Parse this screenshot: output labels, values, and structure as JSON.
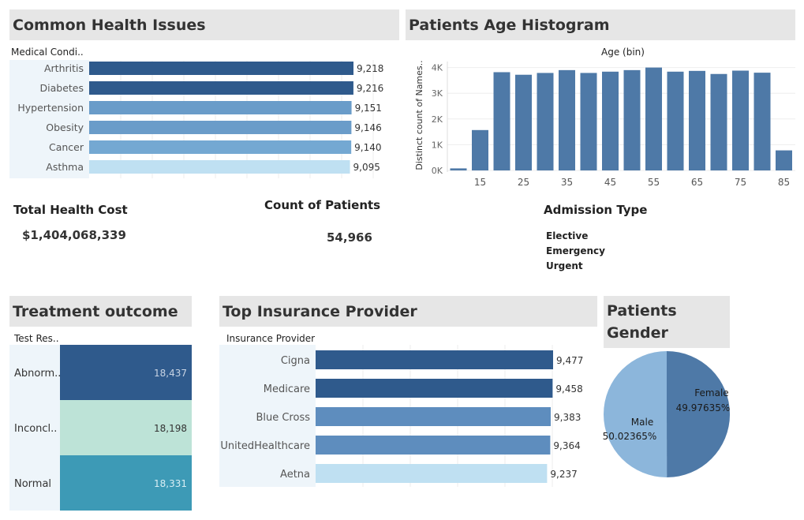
{
  "health": {
    "title": "Common Health Issues",
    "column_header": "Medical Condi..",
    "colors": [
      "#2f5a8c",
      "#2f5a8c",
      "#6a9cc9",
      "#6a9cc9",
      "#74a8d2",
      "#bfe0f2"
    ]
  },
  "age": {
    "title": "Patients Age Histogram",
    "top_label": "Age (bin)",
    "y_label": "Distinct count of Names..",
    "color": "#4e79a7"
  },
  "kpis": {
    "cost_label": "Total Health Cost",
    "cost_value": "$1,404,068,339",
    "patients_label": "Count of Patients",
    "patients_value": "54,966"
  },
  "admission": {
    "title": "Admission Type",
    "items": [
      "Elective",
      "Emergency",
      "Urgent"
    ]
  },
  "treatment": {
    "title": "Treatment outcome",
    "column_header": "Test Res..",
    "colors": [
      "#2f5a8c",
      "#bde3d7",
      "#3d9ab6"
    ],
    "value_colors": [
      "#c7d3e3",
      "#333333",
      "#d9eef4"
    ]
  },
  "insurance": {
    "title": "Top Insurance Provider",
    "column_header": "Insurance Provider",
    "colors": [
      "#2f5a8c",
      "#2f5a8c",
      "#5e8dbe",
      "#5e8dbe",
      "#bfe0f2"
    ]
  },
  "gender": {
    "title_line1": "Patients",
    "title_line2": "Gender",
    "colors": [
      "#4e79a7",
      "#8cb6db"
    ]
  },
  "chart_data": [
    {
      "type": "bar",
      "orientation": "horizontal",
      "title": "Common Health Issues",
      "categories": [
        "Arthritis",
        "Diabetes",
        "Hypertension",
        "Obesity",
        "Cancer",
        "Asthma"
      ],
      "values": [
        9218,
        9216,
        9151,
        9146,
        9140,
        9095
      ],
      "value_labels": [
        "9,218",
        "9,216",
        "9,151",
        "9,146",
        "9,140",
        "9,095"
      ]
    },
    {
      "type": "bar",
      "title": "Patients Age Histogram",
      "xlabel": "Age (bin)",
      "ylabel": "Distinct count of Names..",
      "x": [
        10,
        15,
        20,
        25,
        30,
        35,
        40,
        45,
        50,
        55,
        60,
        65,
        70,
        75,
        80,
        85
      ],
      "values": [
        80,
        1570,
        3820,
        3720,
        3790,
        3900,
        3790,
        3840,
        3900,
        4000,
        3840,
        3870,
        3750,
        3880,
        3800,
        780
      ],
      "x_ticks": [
        "15",
        "25",
        "35",
        "45",
        "55",
        "65",
        "75",
        "85"
      ],
      "y_ticks": [
        "0K",
        "1K",
        "2K",
        "3K",
        "4K"
      ],
      "ylim": [
        0,
        4000
      ],
      "grid": true
    },
    {
      "type": "table",
      "title": "Treatment outcome",
      "categories": [
        "Abnorm..",
        "Inconcl..",
        "Normal"
      ],
      "values": [
        18437,
        18198,
        18331
      ],
      "value_labels": [
        "18,437",
        "18,198",
        "18,331"
      ]
    },
    {
      "type": "bar",
      "orientation": "horizontal",
      "title": "Top Insurance Provider",
      "categories": [
        "Cigna",
        "Medicare",
        "Blue Cross",
        "UnitedHealthcare",
        "Aetna"
      ],
      "values": [
        9477,
        9458,
        9383,
        9364,
        9237
      ],
      "value_labels": [
        "9,477",
        "9,458",
        "9,383",
        "9,364",
        "9,237"
      ]
    },
    {
      "type": "pie",
      "title": "Patients Gender",
      "categories": [
        "Female",
        "Male"
      ],
      "values": [
        49.97635,
        50.02365
      ],
      "value_labels": [
        "49.97635%",
        "50.02365%"
      ]
    }
  ]
}
